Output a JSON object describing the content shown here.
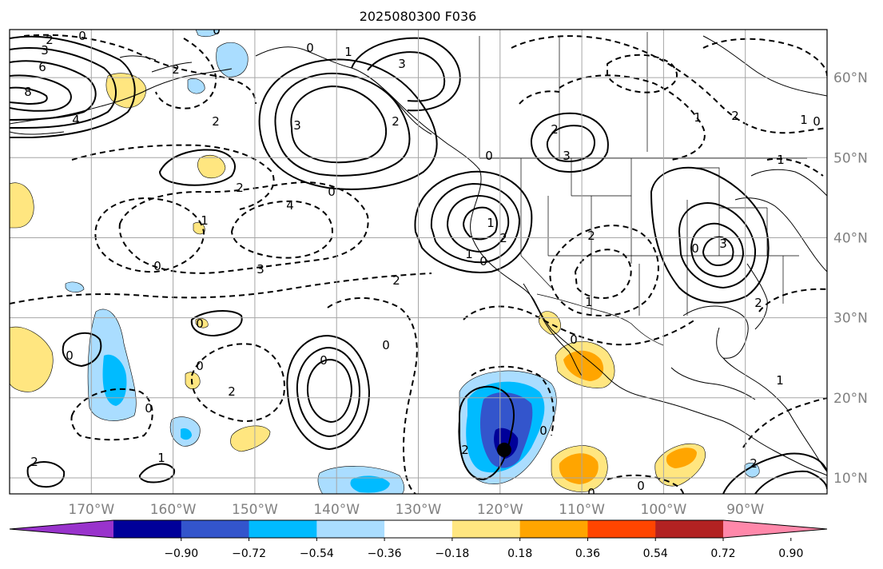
{
  "title": "2025080300 F036",
  "map": {
    "lon_range": [
      -180,
      -80
    ],
    "lat_range": [
      8,
      66
    ],
    "lon_ticks": [
      {
        "value": -170,
        "label": "170°W"
      },
      {
        "value": -160,
        "label": "160°W"
      },
      {
        "value": -150,
        "label": "150°W"
      },
      {
        "value": -140,
        "label": "140°W"
      },
      {
        "value": -130,
        "label": "130°W"
      },
      {
        "value": -120,
        "label": "120°W"
      },
      {
        "value": -110,
        "label": "110°W"
      },
      {
        "value": -100,
        "label": "100°W"
      },
      {
        "value": -90,
        "label": "90°W"
      }
    ],
    "lat_ticks": [
      {
        "value": 60,
        "label": "60°N"
      },
      {
        "value": 50,
        "label": "50°N"
      },
      {
        "value": 40,
        "label": "40°N"
      },
      {
        "value": 30,
        "label": "30°N"
      },
      {
        "value": 20,
        "label": "20°N"
      },
      {
        "value": 10,
        "label": "10°N"
      }
    ],
    "grid": true,
    "marker": {
      "lon": -119.5,
      "lat": 13.5,
      "color": "#000000"
    }
  },
  "colorbar": {
    "extend": "both",
    "colors": [
      "#9933cc",
      "#000099",
      "#3355cc",
      "#00bbff",
      "#aaddff",
      "#ffffff",
      "#ffe680",
      "#ffa500",
      "#ff4500",
      "#b22222",
      "#ff88aa"
    ],
    "tick_labels": [
      "−0.90",
      "−0.72",
      "−0.54",
      "−0.36",
      "−0.18",
      "0.18",
      "0.36",
      "0.54",
      "0.72",
      "0.90"
    ]
  },
  "contour_labels": [
    "0",
    "2",
    "3",
    "6",
    "8",
    "4",
    "2",
    "2",
    "0",
    "1",
    "0",
    "3",
    "3",
    "2",
    "0",
    "4",
    "3",
    "2",
    "1",
    "2",
    "1",
    "0",
    "0",
    "2",
    "3",
    "1",
    "2",
    "0",
    "3",
    "2",
    "1",
    "1",
    "2",
    "1",
    "2",
    "2",
    "0",
    "0",
    "2",
    "1",
    "0",
    "0",
    "0",
    "1",
    "2",
    "0",
    "0",
    "2",
    "0",
    "0",
    "0",
    "0",
    "1",
    "0"
  ]
}
